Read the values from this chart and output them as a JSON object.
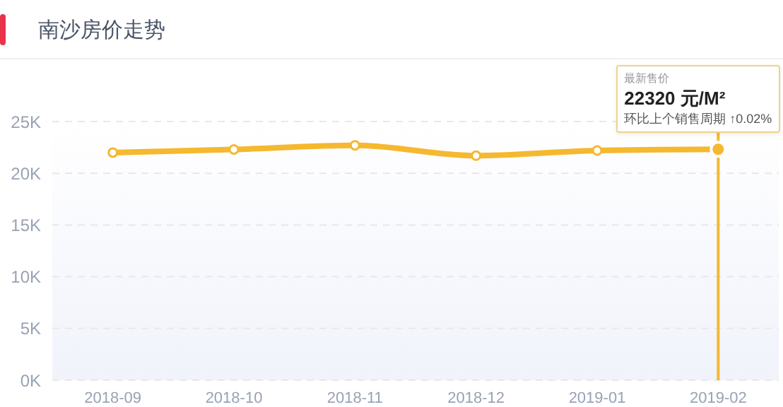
{
  "chart_data": {
    "type": "line",
    "title": "南沙房价走势",
    "categories": [
      "2018-09",
      "2018-10",
      "2018-11",
      "2018-12",
      "2019-01",
      "2019-02"
    ],
    "series": [
      {
        "color": "#f5b82e",
        "values": [
          22000,
          22300,
          22700,
          21700,
          22200,
          22320
        ]
      }
    ],
    "ylim": [
      0,
      25000
    ],
    "yticks": [
      {
        "value": 0,
        "label": "0K"
      },
      {
        "value": 5000,
        "label": "5K"
      },
      {
        "value": 10000,
        "label": "10K"
      },
      {
        "value": 15000,
        "label": "15K"
      },
      {
        "value": 20000,
        "label": "20K"
      },
      {
        "value": 25000,
        "label": "25K"
      }
    ],
    "grid": "y",
    "marker": "circle",
    "line_style": "solid",
    "ref_lines": [
      {
        "axis": "x",
        "value": "2019-02",
        "color": "#f5b82e"
      }
    ],
    "annotations": [
      "最新售价",
      "22320 元/M²",
      "环比上个销售周期 ↑0.02%"
    ]
  }
}
